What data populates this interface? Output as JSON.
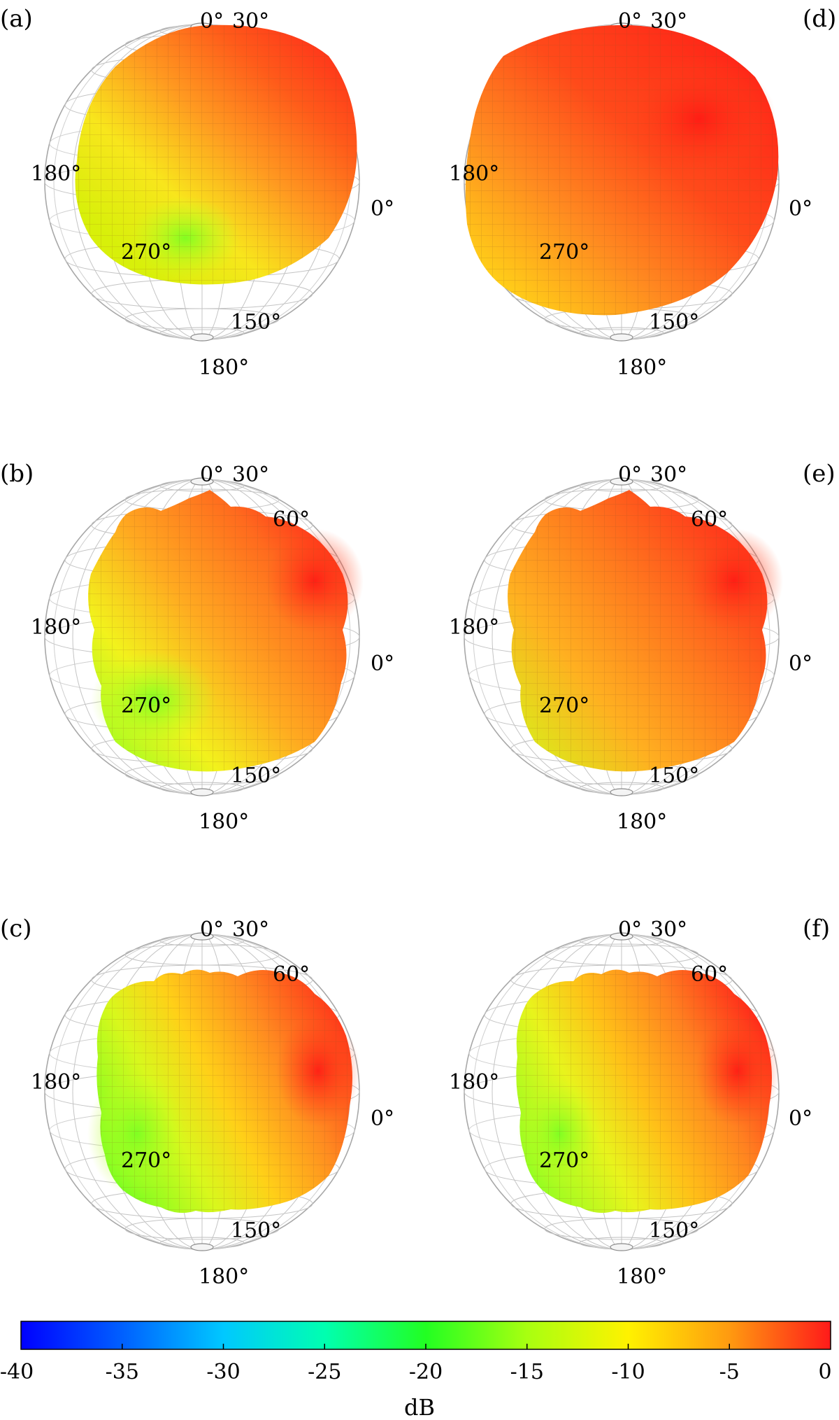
{
  "chart_data": {
    "type": "heatmap",
    "description_kind": "3D spherical directivity balloon plots with dB colormap",
    "panels": [
      {
        "label": "(a)",
        "angles": [
          "0°",
          "30°",
          "180°",
          "0°",
          "270°",
          "150°",
          "180°"
        ]
      },
      {
        "label": "(b)",
        "angles": [
          "0°",
          "30°",
          "60°",
          "180°",
          "0°",
          "270°",
          "150°",
          "180°"
        ]
      },
      {
        "label": "(c)",
        "angles": [
          "0°",
          "30°",
          "60°",
          "180°",
          "0°",
          "270°",
          "150°",
          "180°"
        ]
      },
      {
        "label": "(d)",
        "angles": [
          "0°",
          "30°",
          "180°",
          "0°",
          "270°",
          "150°",
          "180°"
        ]
      },
      {
        "label": "(e)",
        "angles": [
          "0°",
          "30°",
          "60°",
          "180°",
          "0°",
          "270°",
          "150°",
          "180°"
        ]
      },
      {
        "label": "(f)",
        "angles": [
          "0°",
          "30°",
          "60°",
          "180°",
          "0°",
          "270°",
          "150°",
          "180°"
        ]
      }
    ],
    "colorbar": {
      "label": "dB",
      "range": [
        -40,
        0
      ],
      "ticks": [
        "-40",
        "-35",
        "-30",
        "-25",
        "-20",
        "-15",
        "-10",
        "-5",
        "0"
      ],
      "colormap": "jet-like (blue to red)"
    }
  },
  "colors": {
    "red": "#ff2a1a",
    "orange": "#ff7a1e",
    "yellow": "#f8e61c",
    "green": "#66ff22",
    "blue": "#0000ff",
    "cyan": "#00ffff",
    "grid": "#b8b8b8"
  }
}
